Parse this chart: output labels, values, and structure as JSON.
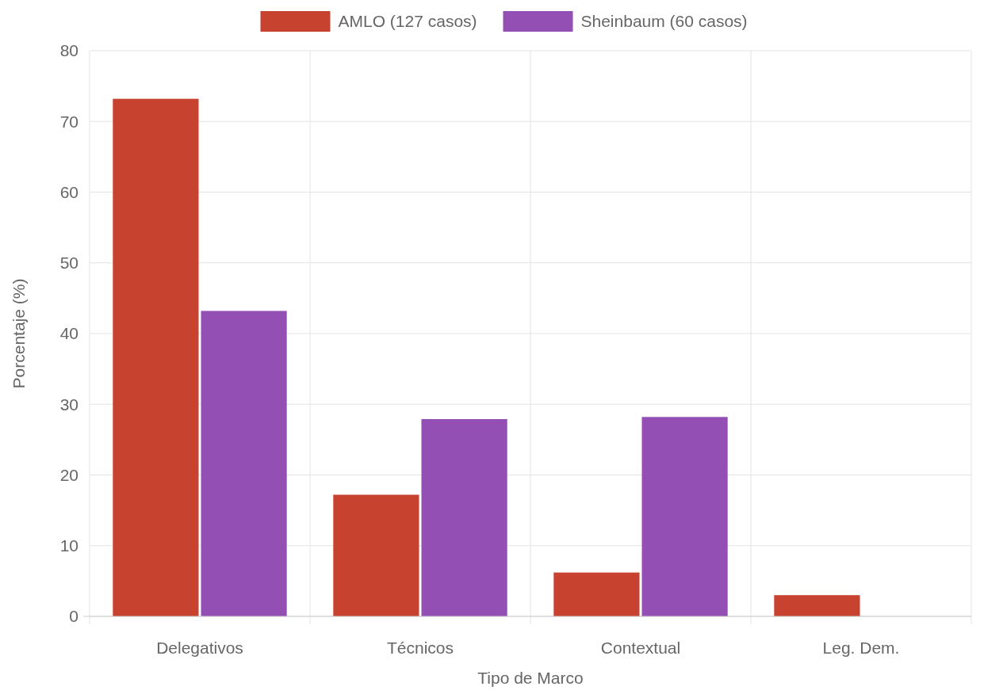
{
  "chart_data": {
    "type": "bar",
    "xlabel": "Tipo de Marco",
    "ylabel": "Porcentaje (%)",
    "categories": [
      "Delegativos",
      "Técnicos",
      "Contextual",
      "Leg. Dem."
    ],
    "series": [
      {
        "name": "AMLO (127 casos)",
        "color": "#c84230",
        "values": [
          73.2,
          17.2,
          6.2,
          3.0
        ]
      },
      {
        "name": "Sheinbaum (60 casos)",
        "color": "#944fb4",
        "values": [
          43.2,
          27.9,
          28.2,
          0
        ]
      }
    ],
    "ylim": [
      0,
      80
    ],
    "yticks": [
      0,
      10,
      20,
      30,
      40,
      50,
      60,
      70,
      80
    ],
    "grid": true,
    "legend": "top"
  }
}
